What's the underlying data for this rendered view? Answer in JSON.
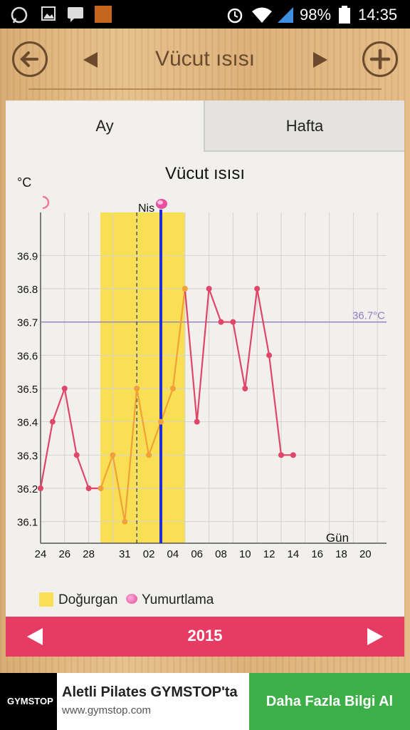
{
  "status_bar": {
    "battery": "98%",
    "time": "14:35"
  },
  "header": {
    "title": "Vücut ısısı"
  },
  "tabs": [
    {
      "label": "Ay"
    },
    {
      "label": "Hafta"
    }
  ],
  "chart_data": {
    "type": "line",
    "title": "Vücut ısısı",
    "ylabel": "°C",
    "xlabel": "Gün",
    "ylim": [
      36.0,
      37.0
    ],
    "y_ticks": [
      "36.1",
      "36.2",
      "36.3",
      "36.4",
      "36.5",
      "36.6",
      "36.7",
      "36.8",
      "36.9"
    ],
    "x_ticks": [
      "24",
      "26",
      "28",
      "31",
      "02",
      "04",
      "06",
      "08",
      "10",
      "12",
      "14",
      "16",
      "18",
      "20"
    ],
    "x_tick_day_index": [
      0,
      2,
      4,
      7,
      9,
      11,
      13,
      15,
      17,
      19,
      21,
      23,
      25,
      27
    ],
    "reference_line": {
      "value": 36.7,
      "label": "36.7°C"
    },
    "fertile_window_day_index": [
      5,
      12
    ],
    "ovulation_day_index": 10,
    "ovulation_marker_label": "Nis",
    "temperatures": [
      36.2,
      36.4,
      36.5,
      36.3,
      36.2,
      36.2,
      36.3,
      36.1,
      36.5,
      36.3,
      36.4,
      36.5,
      36.8,
      36.4,
      36.8,
      36.7,
      36.7,
      36.5,
      36.8,
      36.6,
      36.3,
      36.3
    ],
    "colors": {
      "line": "#e0466a",
      "fertile_line": "#f2a13a",
      "fertile_band": "#f9df54",
      "ovulation_line": "#1d2ed6",
      "reference": "#8c7fc3"
    },
    "grid": true
  },
  "legend": {
    "fertile": "Doğurgan",
    "ovulation": "Yumurtlama"
  },
  "year_bar": {
    "year": "2015"
  },
  "ad": {
    "logo_text": "GYMSTOP",
    "title": "Aletli Pilates GYMSTOP'ta",
    "url": "www.gymstop.com",
    "cta": "Daha Fazla Bilgi Al"
  }
}
